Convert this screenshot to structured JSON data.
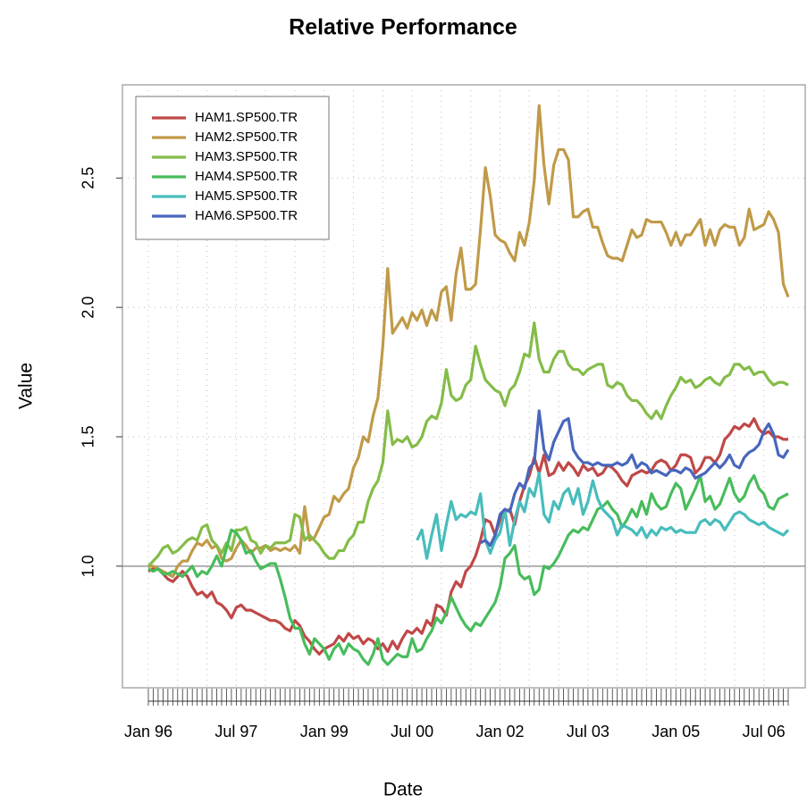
{
  "chart_data": {
    "type": "line",
    "title": "Relative Performance",
    "x_label": "Date",
    "y_label": "Value",
    "categories": [
      "Jan 96",
      null,
      null,
      null,
      null,
      null,
      null,
      null,
      null,
      null,
      null,
      null,
      null,
      null,
      null,
      null,
      null,
      null,
      "Jul 97",
      null,
      null,
      null,
      null,
      null,
      null,
      null,
      null,
      null,
      null,
      null,
      null,
      null,
      null,
      null,
      null,
      null,
      "Jan 99",
      null,
      null,
      null,
      null,
      null,
      null,
      null,
      null,
      null,
      null,
      null,
      null,
      null,
      null,
      null,
      null,
      null,
      "Jul 00",
      null,
      null,
      null,
      null,
      null,
      null,
      null,
      null,
      null,
      null,
      null,
      null,
      null,
      null,
      null,
      null,
      null,
      "Jan 02",
      null,
      null,
      null,
      null,
      null,
      null,
      null,
      null,
      null,
      null,
      null,
      null,
      null,
      null,
      null,
      null,
      null,
      "Jul 03",
      null,
      null,
      null,
      null,
      null,
      null,
      null,
      null,
      null,
      null,
      null,
      null,
      null,
      null,
      null,
      null,
      null,
      "Jan 05",
      null,
      null,
      null,
      null,
      null,
      null,
      null,
      null,
      null,
      null,
      null,
      null,
      null,
      null,
      null,
      null,
      null,
      "Jul 06",
      null,
      null,
      null,
      null,
      null
    ],
    "series": [
      {
        "name": "HAM1.SP500.TR",
        "color": "#c04848",
        "values": [
          0.98,
          0.99,
          0.99,
          0.97,
          0.95,
          0.94,
          0.96,
          0.98,
          0.96,
          0.92,
          0.89,
          0.9,
          0.88,
          0.9,
          0.86,
          0.85,
          0.83,
          0.8,
          0.84,
          0.85,
          0.83,
          0.83,
          0.82,
          0.81,
          0.8,
          0.79,
          0.79,
          0.78,
          0.76,
          0.75,
          0.79,
          0.77,
          0.73,
          0.71,
          0.68,
          0.66,
          0.68,
          0.69,
          0.7,
          0.73,
          0.71,
          0.74,
          0.72,
          0.73,
          0.7,
          0.72,
          0.71,
          0.68,
          0.7,
          0.67,
          0.71,
          0.68,
          0.72,
          0.75,
          0.74,
          0.76,
          0.74,
          0.79,
          0.77,
          0.85,
          0.84,
          0.81,
          0.9,
          0.94,
          0.92,
          0.98,
          1.0,
          1.04,
          1.1,
          1.18,
          1.17,
          1.12,
          1.18,
          1.21,
          1.22,
          1.16,
          1.25,
          1.31,
          1.35,
          1.42,
          1.36,
          1.43,
          1.35,
          1.36,
          1.4,
          1.37,
          1.4,
          1.38,
          1.35,
          1.39,
          1.37,
          1.38,
          1.35,
          1.36,
          1.39,
          1.38,
          1.36,
          1.33,
          1.31,
          1.35,
          1.36,
          1.37,
          1.36,
          1.37,
          1.4,
          1.41,
          1.4,
          1.37,
          1.39,
          1.43,
          1.43,
          1.42,
          1.36,
          1.38,
          1.42,
          1.42,
          1.4,
          1.43,
          1.49,
          1.51,
          1.54,
          1.53,
          1.55,
          1.54,
          1.57,
          1.53,
          1.51,
          1.52,
          1.5,
          1.5,
          1.49,
          1.49
        ]
      },
      {
        "name": "HAM2.SP500.TR",
        "color": "#c09a48",
        "values": [
          1.0,
          1.0,
          0.99,
          0.98,
          0.97,
          0.96,
          1.0,
          1.02,
          1.02,
          1.06,
          1.09,
          1.08,
          1.1,
          1.07,
          1.08,
          1.03,
          1.02,
          1.03,
          1.07,
          1.1,
          1.08,
          1.05,
          1.07,
          1.07,
          1.08,
          1.06,
          1.07,
          1.06,
          1.07,
          1.06,
          1.08,
          1.05,
          1.23,
          1.1,
          1.11,
          1.15,
          1.19,
          1.2,
          1.27,
          1.25,
          1.28,
          1.3,
          1.38,
          1.42,
          1.5,
          1.48,
          1.58,
          1.65,
          1.85,
          2.15,
          1.9,
          1.93,
          1.96,
          1.92,
          1.98,
          1.95,
          1.99,
          1.93,
          1.99,
          1.95,
          2.06,
          2.08,
          1.95,
          2.13,
          2.23,
          2.07,
          2.07,
          2.09,
          2.3,
          2.54,
          2.43,
          2.28,
          2.26,
          2.25,
          2.21,
          2.18,
          2.29,
          2.24,
          2.33,
          2.49,
          2.78,
          2.55,
          2.4,
          2.55,
          2.61,
          2.61,
          2.57,
          2.35,
          2.35,
          2.37,
          2.38,
          2.31,
          2.31,
          2.25,
          2.2,
          2.19,
          2.19,
          2.18,
          2.24,
          2.3,
          2.27,
          2.28,
          2.34,
          2.33,
          2.33,
          2.33,
          2.29,
          2.24,
          2.29,
          2.24,
          2.28,
          2.28,
          2.31,
          2.34,
          2.24,
          2.3,
          2.24,
          2.3,
          2.32,
          2.31,
          2.31,
          2.24,
          2.27,
          2.38,
          2.3,
          2.31,
          2.32,
          2.37,
          2.34,
          2.29,
          2.09,
          2.04
        ]
      },
      {
        "name": "HAM3.SP500.TR",
        "color": "#84bc48",
        "values": [
          1.0,
          1.02,
          1.04,
          1.07,
          1.08,
          1.05,
          1.06,
          1.08,
          1.1,
          1.11,
          1.1,
          1.15,
          1.16,
          1.1,
          1.08,
          1.05,
          1.09,
          1.06,
          1.14,
          1.14,
          1.15,
          1.1,
          1.09,
          1.05,
          1.08,
          1.07,
          1.09,
          1.09,
          1.09,
          1.1,
          1.2,
          1.19,
          1.1,
          1.12,
          1.1,
          1.08,
          1.05,
          1.03,
          1.03,
          1.06,
          1.06,
          1.1,
          1.12,
          1.17,
          1.17,
          1.25,
          1.3,
          1.33,
          1.4,
          1.6,
          1.47,
          1.49,
          1.48,
          1.5,
          1.46,
          1.47,
          1.5,
          1.56,
          1.58,
          1.57,
          1.63,
          1.76,
          1.66,
          1.64,
          1.65,
          1.7,
          1.72,
          1.85,
          1.78,
          1.72,
          1.7,
          1.68,
          1.67,
          1.62,
          1.68,
          1.7,
          1.75,
          1.82,
          1.81,
          1.94,
          1.8,
          1.75,
          1.75,
          1.8,
          1.83,
          1.83,
          1.78,
          1.76,
          1.76,
          1.74,
          1.76,
          1.77,
          1.78,
          1.78,
          1.7,
          1.69,
          1.71,
          1.7,
          1.66,
          1.64,
          1.64,
          1.62,
          1.59,
          1.57,
          1.6,
          1.57,
          1.62,
          1.66,
          1.69,
          1.73,
          1.71,
          1.72,
          1.69,
          1.7,
          1.72,
          1.73,
          1.71,
          1.7,
          1.73,
          1.74,
          1.78,
          1.78,
          1.76,
          1.77,
          1.74,
          1.75,
          1.75,
          1.72,
          1.7,
          1.71,
          1.71,
          1.7
        ]
      },
      {
        "name": "HAM4.SP500.TR",
        "color": "#48bc5c",
        "values": [
          0.99,
          0.98,
          0.99,
          0.97,
          0.97,
          0.98,
          0.97,
          0.96,
          0.98,
          1.0,
          0.96,
          0.98,
          0.97,
          1.0,
          1.04,
          1.0,
          1.07,
          1.14,
          1.13,
          1.1,
          1.05,
          1.06,
          1.02,
          0.99,
          1.0,
          1.01,
          1.01,
          0.95,
          0.88,
          0.8,
          0.76,
          0.76,
          0.7,
          0.66,
          0.72,
          0.7,
          0.68,
          0.64,
          0.68,
          0.7,
          0.66,
          0.7,
          0.68,
          0.67,
          0.64,
          0.62,
          0.66,
          0.72,
          0.64,
          0.62,
          0.64,
          0.66,
          0.65,
          0.65,
          0.72,
          0.67,
          0.68,
          0.72,
          0.75,
          0.8,
          0.78,
          0.82,
          0.88,
          0.84,
          0.8,
          0.77,
          0.75,
          0.78,
          0.77,
          0.8,
          0.83,
          0.86,
          0.92,
          1.03,
          1.05,
          1.08,
          0.97,
          0.95,
          0.96,
          0.89,
          0.91,
          1.0,
          0.99,
          1.01,
          1.04,
          1.08,
          1.12,
          1.14,
          1.13,
          1.15,
          1.14,
          1.18,
          1.22,
          1.23,
          1.25,
          1.22,
          1.2,
          1.15,
          1.18,
          1.22,
          1.19,
          1.25,
          1.2,
          1.28,
          1.24,
          1.22,
          1.23,
          1.28,
          1.32,
          1.3,
          1.22,
          1.26,
          1.3,
          1.35,
          1.25,
          1.27,
          1.22,
          1.24,
          1.29,
          1.34,
          1.28,
          1.25,
          1.27,
          1.32,
          1.35,
          1.3,
          1.28,
          1.23,
          1.22,
          1.26,
          1.27,
          1.28
        ]
      },
      {
        "name": "HAM5.SP500.TR",
        "color": "#48bcbc",
        "values": [
          null,
          null,
          null,
          null,
          null,
          null,
          null,
          null,
          null,
          null,
          null,
          null,
          null,
          null,
          null,
          null,
          null,
          null,
          null,
          null,
          null,
          null,
          null,
          null,
          null,
          null,
          null,
          null,
          null,
          null,
          null,
          null,
          null,
          null,
          null,
          null,
          null,
          null,
          null,
          null,
          null,
          null,
          null,
          null,
          null,
          null,
          null,
          null,
          null,
          null,
          null,
          null,
          null,
          null,
          null,
          1.1,
          1.14,
          1.03,
          1.12,
          1.2,
          1.06,
          1.16,
          1.25,
          1.18,
          1.2,
          1.19,
          1.21,
          1.2,
          1.28,
          1.1,
          1.05,
          1.1,
          1.13,
          1.22,
          1.08,
          1.18,
          1.25,
          1.21,
          1.3,
          1.27,
          1.36,
          1.2,
          1.17,
          1.25,
          1.22,
          1.28,
          1.3,
          1.24,
          1.3,
          1.2,
          1.25,
          1.33,
          1.26,
          1.22,
          1.2,
          1.18,
          1.12,
          1.16,
          1.15,
          1.14,
          1.12,
          1.15,
          1.11,
          1.14,
          1.12,
          1.15,
          1.14,
          1.15,
          1.13,
          1.14,
          1.13,
          1.13,
          1.13,
          1.17,
          1.18,
          1.16,
          1.18,
          1.17,
          1.14,
          1.17,
          1.2,
          1.21,
          1.2,
          1.18,
          1.17,
          1.16,
          1.17,
          1.15,
          1.14,
          1.13,
          1.12,
          1.14
        ]
      },
      {
        "name": "HAM6.SP500.TR",
        "color": "#4866bc",
        "values": [
          null,
          null,
          null,
          null,
          null,
          null,
          null,
          null,
          null,
          null,
          null,
          null,
          null,
          null,
          null,
          null,
          null,
          null,
          null,
          null,
          null,
          null,
          null,
          null,
          null,
          null,
          null,
          null,
          null,
          null,
          null,
          null,
          null,
          null,
          null,
          null,
          null,
          null,
          null,
          null,
          null,
          null,
          null,
          null,
          null,
          null,
          null,
          null,
          null,
          null,
          null,
          null,
          null,
          null,
          null,
          null,
          null,
          null,
          null,
          null,
          null,
          null,
          null,
          null,
          null,
          null,
          null,
          null,
          1.09,
          1.1,
          1.08,
          1.12,
          1.2,
          1.22,
          1.21,
          1.28,
          1.32,
          1.3,
          1.38,
          1.4,
          1.6,
          1.45,
          1.41,
          1.48,
          1.52,
          1.56,
          1.57,
          1.45,
          1.42,
          1.4,
          1.4,
          1.39,
          1.4,
          1.39,
          1.39,
          1.39,
          1.4,
          1.39,
          1.4,
          1.43,
          1.38,
          1.4,
          1.39,
          1.36,
          1.37,
          1.36,
          1.35,
          1.37,
          1.37,
          1.36,
          1.38,
          1.37,
          1.34,
          1.35,
          1.36,
          1.38,
          1.4,
          1.38,
          1.4,
          1.43,
          1.39,
          1.38,
          1.42,
          1.44,
          1.45,
          1.47,
          1.52,
          1.55,
          1.51,
          1.43,
          1.42,
          1.45
        ]
      }
    ],
    "ylim": [
      0.53,
      2.86
    ],
    "yticks": [
      {
        "value": 1,
        "label": "1.0"
      },
      1.5,
      {
        "value": 2,
        "label": "2.0"
      },
      2.5
    ],
    "reference_line": 1,
    "grid": true,
    "legend": "top-left"
  }
}
